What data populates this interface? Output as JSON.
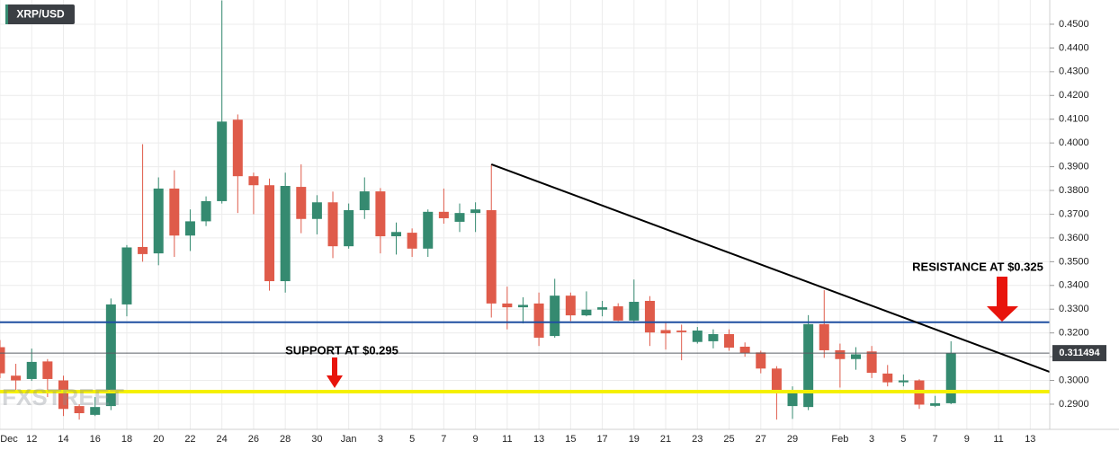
{
  "chart_data": {
    "type": "candlestick",
    "title": "XRP/USD",
    "watermark": "FXSTREET",
    "categories": [
      "Dec",
      null,
      "12",
      null,
      "14",
      null,
      "16",
      null,
      "18",
      null,
      "20",
      null,
      "22",
      null,
      "24",
      null,
      "26",
      null,
      "28",
      null,
      "30",
      null,
      "Jan",
      null,
      "3",
      null,
      "5",
      null,
      "7",
      null,
      "9",
      null,
      "11",
      null,
      "13",
      null,
      "15",
      null,
      "17",
      null,
      "19",
      null,
      "21",
      null,
      "23",
      null,
      "25",
      null,
      "27",
      null,
      "29",
      null,
      null,
      "Feb",
      null,
      "3",
      null,
      "5",
      null,
      "7",
      null,
      "9",
      null,
      "11",
      null,
      "13"
    ],
    "open": [
      0.314,
      0.302,
      0.3006,
      0.308,
      0.3,
      0.2892,
      0.2855,
      0.2892,
      0.332,
      0.3562,
      0.3535,
      0.3808,
      0.361,
      0.367,
      0.3755,
      0.4098,
      0.386,
      0.3822,
      0.3418,
      0.3815,
      0.368,
      0.375,
      0.3565,
      0.3717,
      0.3796,
      0.3607,
      0.3622,
      0.3555,
      0.371,
      0.3668,
      0.3705,
      0.3717,
      0.3324,
      0.3308,
      0.3324,
      0.3187,
      0.3357,
      0.3274,
      0.3298,
      0.3312,
      0.3252,
      0.3335,
      0.3212,
      0.321,
      0.3162,
      0.3165,
      0.3195,
      0.3142,
      0.3118,
      0.305,
      0.2892,
      0.2888,
      0.3237,
      0.3127,
      0.309,
      0.3122,
      0.3029,
      0.2992,
      0.3,
      0.2893,
      0.2904,
      null,
      null,
      null,
      null,
      null
    ],
    "high": [
      0.317,
      0.307,
      0.3134,
      0.309,
      0.302,
      0.29,
      0.293,
      0.3345,
      0.357,
      0.3995,
      0.3855,
      0.3885,
      0.372,
      0.3775,
      0.46,
      0.412,
      0.3875,
      0.385,
      0.3875,
      0.391,
      0.378,
      0.3795,
      0.3745,
      0.3855,
      0.381,
      0.3665,
      0.364,
      0.372,
      0.3808,
      0.3745,
      0.375,
      0.391,
      0.3395,
      0.335,
      0.337,
      0.3428,
      0.337,
      0.3375,
      0.3335,
      0.3325,
      0.3425,
      0.3355,
      0.3245,
      0.3235,
      0.3225,
      0.3215,
      0.3215,
      0.316,
      0.3125,
      0.306,
      0.2975,
      0.3275,
      0.338,
      0.3155,
      0.314,
      0.3145,
      0.3065,
      0.3025,
      0.3005,
      0.2935,
      0.3165,
      null,
      null,
      null,
      null,
      null
    ],
    "low": [
      0.301,
      0.296,
      0.2998,
      0.293,
      0.285,
      0.2835,
      0.285,
      0.2875,
      0.327,
      0.35,
      0.3485,
      0.352,
      0.3545,
      0.365,
      0.3745,
      0.3705,
      0.37,
      0.3378,
      0.337,
      0.362,
      0.3615,
      0.3515,
      0.3555,
      0.368,
      0.3535,
      0.353,
      0.352,
      0.352,
      0.366,
      0.3625,
      0.3625,
      0.3265,
      0.3215,
      0.324,
      0.3145,
      0.318,
      0.325,
      0.327,
      0.327,
      0.325,
      0.324,
      0.3145,
      0.313,
      0.3085,
      0.3155,
      0.3135,
      0.3125,
      0.31,
      0.303,
      0.2835,
      0.2838,
      0.2875,
      0.3095,
      0.297,
      0.3045,
      0.301,
      0.2975,
      0.2975,
      0.288,
      0.2888,
      0.29,
      null,
      null,
      null,
      null,
      null
    ],
    "close": [
      0.303,
      0.3,
      0.3078,
      0.3006,
      0.288,
      0.2862,
      0.2888,
      0.332,
      0.356,
      0.3532,
      0.3808,
      0.361,
      0.367,
      0.3755,
      0.409,
      0.386,
      0.3822,
      0.3418,
      0.3819,
      0.368,
      0.375,
      0.3565,
      0.3717,
      0.3796,
      0.3607,
      0.3625,
      0.3555,
      0.371,
      0.3683,
      0.3705,
      0.372,
      0.3324,
      0.3308,
      0.3318,
      0.318,
      0.3357,
      0.3274,
      0.3298,
      0.3308,
      0.3252,
      0.3331,
      0.3202,
      0.3198,
      0.3203,
      0.321,
      0.3195,
      0.3138,
      0.3115,
      0.305,
      0.295,
      0.295,
      0.3237,
      0.3127,
      0.309,
      0.311,
      0.3032,
      0.2992,
      0.3,
      0.2898,
      0.2904,
      0.3114,
      null,
      null,
      null,
      null,
      null
    ],
    "up_color": "#358a70",
    "down_color": "#df5b4a",
    "xlim": [
      0,
      66.23
    ],
    "ylim": [
      0.2794,
      0.4602
    ],
    "yticks": [
      {
        "value": 0.29,
        "label": "0.2900"
      },
      {
        "value": 0.3,
        "label": "0.3000"
      },
      {
        "value": 0.31,
        "label": "0.3100"
      },
      {
        "value": 0.32,
        "label": "0.3200"
      },
      {
        "value": 0.33,
        "label": "0.3300"
      },
      {
        "value": 0.34,
        "label": "0.3400"
      },
      {
        "value": 0.35,
        "label": "0.3500"
      },
      {
        "value": 0.36,
        "label": "0.3600"
      },
      {
        "value": 0.37,
        "label": "0.3700"
      },
      {
        "value": 0.38,
        "label": "0.3800"
      },
      {
        "value": 0.39,
        "label": "0.3900"
      },
      {
        "value": 0.4,
        "label": "0.4000"
      },
      {
        "value": 0.41,
        "label": "0.4100"
      },
      {
        "value": 0.42,
        "label": "0.4200"
      },
      {
        "value": 0.43,
        "label": "0.4300"
      },
      {
        "value": 0.44,
        "label": "0.4400"
      },
      {
        "value": 0.45,
        "label": "0.4500"
      }
    ],
    "grid": true,
    "last_price": 0.311494,
    "hlines": [
      {
        "value": 0.3245,
        "color": "#1f4fa0",
        "width": 2
      },
      {
        "value": 0.2953,
        "color": "#f5f000",
        "width": 4
      }
    ],
    "trendline": {
      "x": [
        31,
        66.23
      ],
      "values": [
        0.391,
        0.3036
      ],
      "color": "#000000"
    },
    "annotations": [
      {
        "text": "SUPPORT AT $0.295"
      },
      {
        "text": "RESISTANCE AT $0.325"
      }
    ]
  }
}
